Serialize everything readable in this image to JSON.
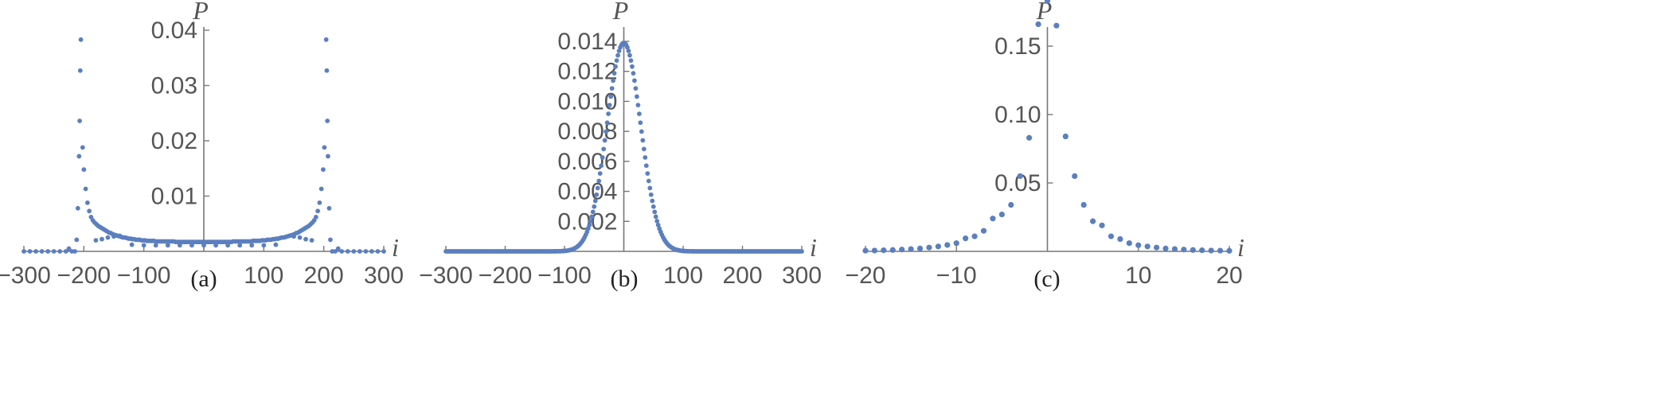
{
  "chart_data": [
    {
      "type": "scatter",
      "caption": "(a)",
      "xlabel": "i",
      "ylabel": "P",
      "xlim": [
        -300,
        300
      ],
      "ylim": [
        0,
        0.04
      ],
      "xticks": [
        -300,
        -200,
        -100,
        100,
        200,
        300
      ],
      "xtick_labels": [
        "−300",
        "−200",
        "−100",
        "100",
        "200",
        "300"
      ],
      "yticks": [
        0.01,
        0.02,
        0.03,
        0.04
      ],
      "ytick_labels": [
        "0.01",
        "0.02",
        "0.03",
        "0.04"
      ],
      "color": "#5b7fbf",
      "points": [
        [
          -300,
          0
        ],
        [
          -290,
          0
        ],
        [
          -280,
          0
        ],
        [
          -270,
          0
        ],
        [
          -260,
          0
        ],
        [
          -250,
          0
        ],
        [
          -240,
          0
        ],
        [
          -230,
          0
        ],
        [
          -225,
          0.0005
        ],
        [
          -220,
          0
        ],
        [
          -215,
          0
        ],
        [
          -212,
          0.0021
        ],
        [
          -210,
          0.0078
        ],
        [
          -208,
          0.0172
        ],
        [
          -207,
          0.0236
        ],
        [
          -206,
          0.0327
        ],
        [
          -205,
          0.0383
        ],
        [
          -202,
          0.0188
        ],
        [
          -200,
          0.0148
        ],
        [
          -197,
          0.0113
        ],
        [
          -194,
          0.0088
        ],
        [
          -191,
          0.0073
        ],
        [
          -188,
          0.0062
        ],
        [
          -185,
          0.0056
        ],
        [
          -182,
          0.0052
        ],
        [
          -179,
          0.0049
        ],
        [
          -176,
          0.0046
        ],
        [
          -173,
          0.0044
        ],
        [
          -170,
          0.0042
        ],
        [
          -167,
          0.004
        ],
        [
          -164,
          0.0038
        ],
        [
          -161,
          0.0036
        ],
        [
          -158,
          0.0034
        ],
        [
          -155,
          0.0033
        ],
        [
          -152,
          0.0031
        ],
        [
          -149,
          0.003
        ],
        [
          -146,
          0.0029
        ],
        [
          -143,
          0.0028
        ],
        [
          -140,
          0.0027
        ],
        [
          -137,
          0.0026
        ],
        [
          -134,
          0.0025
        ],
        [
          -131,
          0.0025
        ],
        [
          -128,
          0.0024
        ],
        [
          -125,
          0.0023
        ],
        [
          -122,
          0.0023
        ],
        [
          -119,
          0.0022
        ],
        [
          -116,
          0.0022
        ],
        [
          -113,
          0.0021
        ],
        [
          -110,
          0.0021
        ],
        [
          -107,
          0.0021
        ],
        [
          -104,
          0.002
        ],
        [
          -101,
          0.002
        ],
        [
          -98,
          0.002
        ],
        [
          -95,
          0.0019
        ],
        [
          -92,
          0.0019
        ],
        [
          -89,
          0.0019
        ],
        [
          -86,
          0.0019
        ],
        [
          -83,
          0.0019
        ],
        [
          -80,
          0.0018
        ],
        [
          -77,
          0.0018
        ],
        [
          -74,
          0.0018
        ],
        [
          -71,
          0.0018
        ],
        [
          -68,
          0.0018
        ],
        [
          -65,
          0.0018
        ],
        [
          -62,
          0.0018
        ],
        [
          -59,
          0.0018
        ],
        [
          -56,
          0.0018
        ],
        [
          -53,
          0.0018
        ],
        [
          -50,
          0.0018
        ],
        [
          -47,
          0.0017
        ],
        [
          -44,
          0.0017
        ],
        [
          -41,
          0.0017
        ],
        [
          -38,
          0.0017
        ],
        [
          -35,
          0.0017
        ],
        [
          -32,
          0.0017
        ],
        [
          -29,
          0.0017
        ],
        [
          -26,
          0.0017
        ],
        [
          -23,
          0.0017
        ],
        [
          -20,
          0.0017
        ],
        [
          -17,
          0.0017
        ],
        [
          -14,
          0.0017
        ],
        [
          -11,
          0.0017
        ],
        [
          -8,
          0.0017
        ],
        [
          -5,
          0.0017
        ],
        [
          -2,
          0.0017
        ],
        [
          1,
          0.0017
        ],
        [
          4,
          0.0017
        ],
        [
          7,
          0.0017
        ],
        [
          10,
          0.0017
        ],
        [
          13,
          0.0017
        ],
        [
          16,
          0.0017
        ],
        [
          19,
          0.0017
        ],
        [
          22,
          0.0017
        ],
        [
          25,
          0.0017
        ],
        [
          28,
          0.0017
        ],
        [
          31,
          0.0017
        ],
        [
          34,
          0.0017
        ],
        [
          37,
          0.0017
        ],
        [
          40,
          0.0017
        ],
        [
          43,
          0.0017
        ],
        [
          46,
          0.0017
        ],
        [
          49,
          0.0018
        ],
        [
          52,
          0.0018
        ],
        [
          55,
          0.0018
        ],
        [
          58,
          0.0018
        ],
        [
          61,
          0.0018
        ],
        [
          64,
          0.0018
        ],
        [
          67,
          0.0018
        ],
        [
          70,
          0.0018
        ],
        [
          73,
          0.0018
        ],
        [
          76,
          0.0018
        ],
        [
          79,
          0.0018
        ],
        [
          82,
          0.0019
        ],
        [
          85,
          0.0019
        ],
        [
          88,
          0.0019
        ],
        [
          91,
          0.0019
        ],
        [
          94,
          0.0019
        ],
        [
          97,
          0.002
        ],
        [
          100,
          0.002
        ],
        [
          103,
          0.002
        ],
        [
          106,
          0.0021
        ],
        [
          109,
          0.0021
        ],
        [
          112,
          0.0021
        ],
        [
          115,
          0.0022
        ],
        [
          118,
          0.0022
        ],
        [
          121,
          0.0023
        ],
        [
          124,
          0.0023
        ],
        [
          127,
          0.0024
        ],
        [
          130,
          0.0025
        ],
        [
          133,
          0.0025
        ],
        [
          136,
          0.0026
        ],
        [
          139,
          0.0027
        ],
        [
          142,
          0.0028
        ],
        [
          145,
          0.0029
        ],
        [
          148,
          0.003
        ],
        [
          151,
          0.0031
        ],
        [
          154,
          0.0033
        ],
        [
          157,
          0.0034
        ],
        [
          160,
          0.0036
        ],
        [
          163,
          0.0038
        ],
        [
          166,
          0.004
        ],
        [
          169,
          0.0042
        ],
        [
          172,
          0.0044
        ],
        [
          175,
          0.0046
        ],
        [
          178,
          0.0049
        ],
        [
          181,
          0.0052
        ],
        [
          184,
          0.0056
        ],
        [
          187,
          0.0062
        ],
        [
          190,
          0.0073
        ],
        [
          193,
          0.0088
        ],
        [
          196,
          0.0113
        ],
        [
          199,
          0.0148
        ],
        [
          201,
          0.0188
        ],
        [
          204,
          0.0383
        ],
        [
          205,
          0.0327
        ],
        [
          206,
          0.0236
        ],
        [
          207,
          0.0172
        ],
        [
          209,
          0.0078
        ],
        [
          211,
          0.0021
        ],
        [
          214,
          0
        ],
        [
          219,
          0
        ],
        [
          224,
          0.0005
        ],
        [
          230,
          0
        ],
        [
          240,
          0
        ],
        [
          250,
          0
        ],
        [
          260,
          0
        ],
        [
          270,
          0
        ],
        [
          280,
          0
        ],
        [
          290,
          0
        ],
        [
          300,
          0
        ],
        [
          -120,
          0.0012
        ],
        [
          -100,
          0.0011
        ],
        [
          -80,
          0.0011
        ],
        [
          -60,
          0.0011
        ],
        [
          -40,
          0.0011
        ],
        [
          -20,
          0.0011
        ],
        [
          0,
          0.0011
        ],
        [
          20,
          0.0011
        ],
        [
          40,
          0.0011
        ],
        [
          60,
          0.0011
        ],
        [
          80,
          0.0011
        ],
        [
          100,
          0.0011
        ],
        [
          120,
          0.0012
        ],
        [
          -180,
          0.002
        ],
        [
          -170,
          0.0022
        ],
        [
          -160,
          0.0025
        ],
        [
          -150,
          0.0027
        ],
        [
          -140,
          0.0028
        ],
        [
          150,
          0.0027
        ],
        [
          160,
          0.0025
        ],
        [
          170,
          0.0022
        ],
        [
          180,
          0.002
        ]
      ]
    },
    {
      "type": "scatter",
      "caption": "(b)",
      "xlabel": "i",
      "ylabel": "P",
      "xlim": [
        -300,
        300
      ],
      "ylim": [
        0,
        0.014
      ],
      "xticks": [
        -300,
        -200,
        -100,
        100,
        200,
        300
      ],
      "xtick_labels": [
        "−300",
        "−200",
        "−100",
        "100",
        "200",
        "300"
      ],
      "yticks": [
        0.002,
        0.004,
        0.006,
        0.008,
        0.01,
        0.012,
        0.014
      ],
      "ytick_labels": [
        "0.002",
        "0.004",
        "0.006",
        "0.008",
        "0.010",
        "0.012",
        "0.014"
      ],
      "color": "#5b7fbf",
      "gaussian": {
        "peak": 0.0139,
        "sigma": 28.5,
        "step": 2
      }
    },
    {
      "type": "scatter",
      "caption": "(c)",
      "xlabel": "i",
      "ylabel": "P",
      "xlim": [
        -20,
        20
      ],
      "ylim": [
        0,
        0.18
      ],
      "xticks": [
        -20,
        -10,
        10,
        20
      ],
      "xtick_labels": [
        "−20",
        "−10",
        "10",
        "20"
      ],
      "yticks": [
        0.05,
        0.1,
        0.15
      ],
      "ytick_labels": [
        "0.05",
        "0.10",
        "0.15"
      ],
      "color": "#5b7fbf",
      "points": [
        [
          -20,
          0.0005
        ],
        [
          -19,
          0.0006
        ],
        [
          -18,
          0.0008
        ],
        [
          -17,
          0.001
        ],
        [
          -16,
          0.0013
        ],
        [
          -15,
          0.0017
        ],
        [
          -14,
          0.0021
        ],
        [
          -13,
          0.0028
        ],
        [
          -12,
          0.0036
        ],
        [
          -11,
          0.0047
        ],
        [
          -10,
          0.006
        ],
        [
          -9,
          0.0095
        ],
        [
          -8,
          0.011
        ],
        [
          -7,
          0.015
        ],
        [
          -6,
          0.024
        ],
        [
          -5,
          0.027
        ],
        [
          -4,
          0.034
        ],
        [
          -3,
          0.055
        ],
        [
          -2,
          0.083
        ],
        [
          -1,
          0.166
        ],
        [
          0,
          0.183
        ],
        [
          1,
          0.165
        ],
        [
          2,
          0.084
        ],
        [
          3,
          0.055
        ],
        [
          4,
          0.034
        ],
        [
          5,
          0.022
        ],
        [
          6,
          0.019
        ],
        [
          7,
          0.011
        ],
        [
          8,
          0.009
        ],
        [
          9,
          0.006
        ],
        [
          10,
          0.0045
        ],
        [
          11,
          0.0036
        ],
        [
          12,
          0.0028
        ],
        [
          13,
          0.0021
        ],
        [
          14,
          0.0017
        ],
        [
          15,
          0.0013
        ],
        [
          16,
          0.001
        ],
        [
          17,
          0.0008
        ],
        [
          18,
          0.0006
        ],
        [
          19,
          0.0005
        ],
        [
          20,
          0.0004
        ]
      ]
    }
  ]
}
